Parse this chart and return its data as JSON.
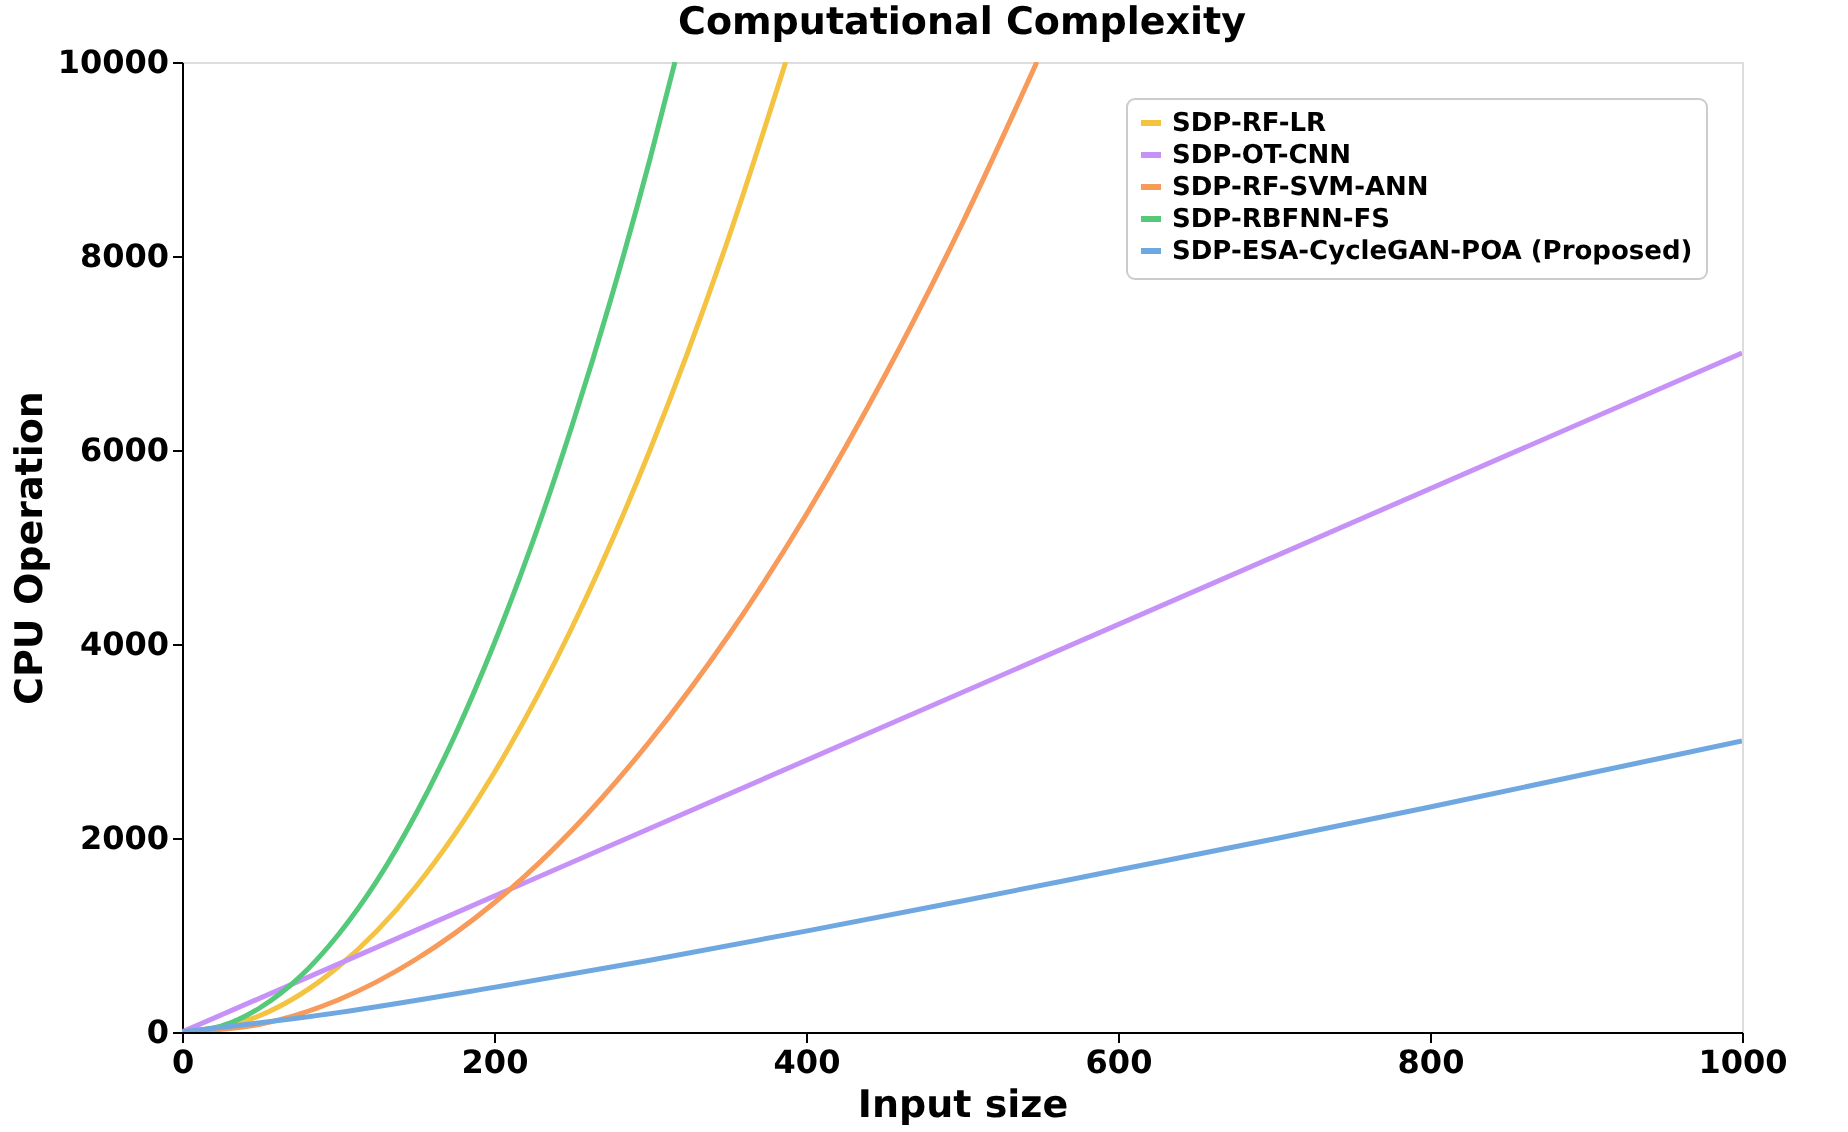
{
  "chart_data": {
    "type": "line",
    "title": "Computational Complexity",
    "xlabel": "Input size",
    "ylabel": "CPU Operation",
    "xlim": [
      0,
      1000
    ],
    "ylim": [
      0,
      10000
    ],
    "xticks": [
      0,
      200,
      400,
      600,
      800,
      1000
    ],
    "yticks": [
      0,
      2000,
      4000,
      6000,
      8000,
      10000
    ],
    "grid": false,
    "legend": "top right",
    "marker": "none",
    "line_style": "solid",
    "series": [
      {
        "name": "SDP-RF-LR",
        "color": "#f5c342",
        "x": [
          0,
          50,
          100,
          150,
          200,
          250,
          300,
          350,
          387
        ],
        "values": [
          0,
          170,
          670,
          1500,
          2670,
          4170,
          6000,
          8170,
          10000
        ]
      },
      {
        "name": "SDP-OT-CNN",
        "color": "#c792f7",
        "x": [
          0,
          1000
        ],
        "values": [
          0,
          7000
        ]
      },
      {
        "name": "SDP-RF-SVM-ANN",
        "color": "#f79a5a",
        "x": [
          0,
          50,
          100,
          150,
          200,
          250,
          300,
          350,
          400,
          450,
          500,
          548
        ],
        "values": [
          0,
          80,
          330,
          750,
          1330,
          2080,
          3000,
          4080,
          5330,
          6750,
          8330,
          10000
        ]
      },
      {
        "name": "SDP-RBFNN-FS",
        "color": "#55c97a",
        "x": [
          0,
          25,
          50,
          75,
          100,
          125,
          150,
          175,
          200,
          225,
          250,
          275,
          300,
          316
        ],
        "values": [
          0,
          60,
          250,
          560,
          1000,
          1560,
          2250,
          3060,
          4000,
          5060,
          6250,
          7560,
          9000,
          10000
        ]
      },
      {
        "name": "SDP-ESA-CycleGAN-POA (Proposed)",
        "color": "#6fa8e0",
        "x": [
          0,
          100,
          200,
          300,
          400,
          500,
          600,
          700,
          800,
          900,
          1000
        ],
        "values": [
          0,
          200,
          460,
          740,
          1040,
          1350,
          1670,
          1990,
          2320,
          2660,
          3000
        ]
      }
    ]
  }
}
